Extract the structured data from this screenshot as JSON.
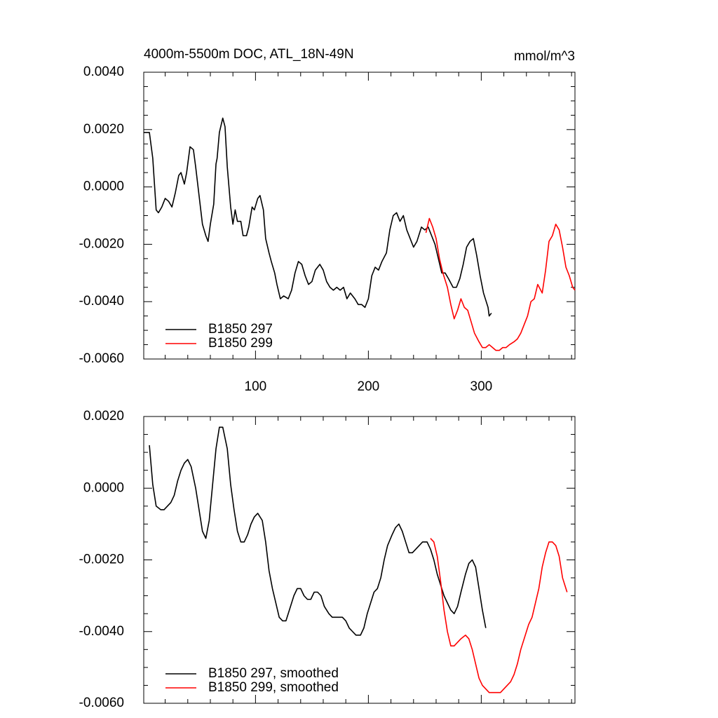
{
  "chart_data": [
    {
      "type": "line",
      "title": "4000m-5500m DOC, ATL_18N-49N",
      "units": "mmol/m^3",
      "xlim": [
        1,
        383
      ],
      "xticks": [
        100,
        200,
        300
      ],
      "show_xtick_labels": true,
      "minor_xticks": [
        20,
        40,
        60,
        80,
        120,
        140,
        160,
        180,
        220,
        240,
        260,
        280,
        320,
        340,
        360,
        380
      ],
      "ylim": [
        -0.006,
        0.004
      ],
      "yticks": [
        {
          "value": -0.006,
          "label": "-0.0060"
        },
        {
          "value": -0.004,
          "label": "-0.0040"
        },
        {
          "value": -0.002,
          "label": "-0.0020"
        },
        {
          "value": 0,
          "label": "0.0000"
        },
        {
          "value": 0.002,
          "label": "0.0020"
        },
        {
          "value": 0.004,
          "label": "0.0040"
        }
      ],
      "minor_yticks": [
        -0.0055,
        -0.005,
        -0.0045,
        -0.0035,
        -0.003,
        -0.0025,
        -0.0015,
        -0.001,
        -0.0005,
        0.0005,
        0.001,
        0.0015,
        0.0025,
        0.003,
        0.0035
      ],
      "legend": "lower left",
      "series": [
        {
          "name": "B1850 297",
          "color": "#000000",
          "x": [
            1,
            4,
            6,
            9,
            12,
            14,
            17,
            20,
            23,
            26,
            29,
            32,
            34,
            37,
            39,
            42,
            45,
            47,
            50,
            53,
            56,
            58,
            60,
            63,
            65,
            66,
            68,
            71,
            73,
            75,
            78,
            80,
            82,
            84,
            87,
            89,
            92,
            94,
            97,
            99,
            102,
            104,
            107,
            109,
            112,
            114,
            117,
            119,
            122,
            125,
            129,
            132,
            135,
            138,
            141,
            144,
            147,
            150,
            153,
            157,
            160,
            163,
            166,
            169,
            172,
            175,
            178,
            181,
            184,
            188,
            191,
            194,
            197,
            200,
            203,
            206,
            209,
            212,
            216,
            219,
            222,
            225,
            228,
            231,
            234,
            237,
            240,
            243,
            247,
            250,
            253,
            256,
            259,
            262,
            265,
            268,
            271,
            275,
            278,
            281,
            284,
            287,
            290,
            293,
            296,
            299,
            302,
            306,
            307,
            309
          ],
          "values": [
            0.0019,
            0.0019,
            0.0019,
            0.001,
            -0.0008,
            -0.0009,
            -0.0007,
            -0.0004,
            -0.0005,
            -0.0007,
            -0.0002,
            0.0004,
            0.0005,
            0.0001,
            0.0005,
            0.0014,
            0.0013,
            0.0007,
            -0.0003,
            -0.0013,
            -0.0017,
            -0.0019,
            -0.0013,
            -0.0006,
            0.0008,
            0.001,
            0.0019,
            0.0024,
            0.0021,
            0.0007,
            -0.0007,
            -0.0013,
            -0.0008,
            -0.0012,
            -0.0012,
            -0.0017,
            -0.0017,
            -0.0014,
            -0.0007,
            -0.0008,
            -0.0004,
            -0.0003,
            -0.0008,
            -0.0018,
            -0.0023,
            -0.0026,
            -0.003,
            -0.0034,
            -0.0039,
            -0.0038,
            -0.0039,
            -0.0036,
            -0.003,
            -0.0026,
            -0.0027,
            -0.0031,
            -0.0034,
            -0.0033,
            -0.0029,
            -0.0027,
            -0.0029,
            -0.0033,
            -0.0035,
            -0.0036,
            -0.0035,
            -0.0036,
            -0.0035,
            -0.0039,
            -0.0037,
            -0.0039,
            -0.0041,
            -0.0041,
            -0.0042,
            -0.0039,
            -0.0031,
            -0.0028,
            -0.0029,
            -0.0026,
            -0.0023,
            -0.0015,
            -0.001,
            -0.0009,
            -0.0012,
            -0.001,
            -0.0015,
            -0.0018,
            -0.0021,
            -0.0019,
            -0.0014,
            -0.0015,
            -0.0014,
            -0.0017,
            -0.002,
            -0.0025,
            -0.003,
            -0.003,
            -0.0032,
            -0.0035,
            -0.0035,
            -0.0032,
            -0.0027,
            -0.0021,
            -0.0019,
            -0.0018,
            -0.0024,
            -0.0031,
            -0.0037,
            -0.0042,
            -0.0045,
            -0.0044
          ]
        },
        {
          "name": "B1850 299",
          "color": "#ff0000",
          "x": [
            251,
            254,
            257,
            260,
            263,
            266,
            270,
            273,
            276,
            279,
            282,
            285,
            288,
            291,
            294,
            298,
            301,
            304,
            307,
            310,
            313,
            316,
            319,
            322,
            325,
            329,
            332,
            335,
            338,
            341,
            344,
            347,
            350,
            354,
            357,
            360,
            363,
            366,
            369,
            372,
            375,
            378,
            381,
            383
          ],
          "values": [
            -0.0016,
            -0.0011,
            -0.0014,
            -0.0018,
            -0.0025,
            -0.003,
            -0.0035,
            -0.0041,
            -0.0046,
            -0.0043,
            -0.0039,
            -0.0042,
            -0.0043,
            -0.0047,
            -0.0051,
            -0.0054,
            -0.0056,
            -0.0056,
            -0.0055,
            -0.0056,
            -0.0057,
            -0.0057,
            -0.0056,
            -0.0056,
            -0.0055,
            -0.0054,
            -0.0053,
            -0.0051,
            -0.0048,
            -0.0045,
            -0.004,
            -0.0039,
            -0.0034,
            -0.0037,
            -0.0029,
            -0.0019,
            -0.0017,
            -0.0013,
            -0.0015,
            -0.0021,
            -0.0028,
            -0.0031,
            -0.0035,
            -0.0036
          ]
        }
      ]
    },
    {
      "type": "line",
      "xlim": [
        1,
        383
      ],
      "xticks": [
        100,
        200,
        300
      ],
      "show_xtick_labels": false,
      "minor_xticks": [
        20,
        40,
        60,
        80,
        120,
        140,
        160,
        180,
        220,
        240,
        260,
        280,
        320,
        340,
        360,
        380
      ],
      "ylim": [
        -0.006,
        0.002
      ],
      "yticks": [
        {
          "value": -0.006,
          "label": "-0.0060"
        },
        {
          "value": -0.004,
          "label": "-0.0040"
        },
        {
          "value": -0.002,
          "label": "-0.0020"
        },
        {
          "value": 0,
          "label": "0.0000"
        },
        {
          "value": 0.002,
          "label": "0.0020"
        }
      ],
      "minor_yticks": [
        -0.0055,
        -0.005,
        -0.0045,
        -0.0035,
        -0.003,
        -0.0025,
        -0.0015,
        -0.001,
        -0.0005,
        0.0005,
        0.001,
        0.0015
      ],
      "legend": "lower left",
      "series": [
        {
          "name": "B1850 297, smoothed",
          "color": "#000000",
          "x": [
            6,
            9,
            12,
            16,
            19,
            22,
            25,
            28,
            31,
            34,
            37,
            40,
            43,
            47,
            50,
            53,
            56,
            59,
            62,
            65,
            68,
            71,
            75,
            78,
            81,
            84,
            87,
            90,
            93,
            96,
            99,
            102,
            106,
            109,
            112,
            115,
            118,
            121,
            124,
            127,
            130,
            134,
            137,
            140,
            143,
            146,
            149,
            152,
            155,
            158,
            161,
            165,
            168,
            171,
            174,
            177,
            180,
            183,
            186,
            189,
            193,
            196,
            199,
            202,
            205,
            208,
            211,
            214,
            217,
            221,
            224,
            227,
            230,
            233,
            236,
            239,
            242,
            245,
            248,
            252,
            255,
            258,
            261,
            264,
            267,
            270,
            273,
            276,
            279,
            282,
            286,
            289,
            292,
            295,
            298,
            301,
            304
          ],
          "values": [
            0.0012,
            0.0001,
            -0.0005,
            -0.0006,
            -0.0006,
            -0.0005,
            -0.0004,
            -0.0002,
            0.0002,
            0.0005,
            0.0007,
            0.0008,
            0.0006,
            0.0,
            -0.0006,
            -0.0012,
            -0.0014,
            -0.0009,
            0.0001,
            0.0011,
            0.0017,
            0.0017,
            0.0011,
            0.0001,
            -0.0006,
            -0.0012,
            -0.0015,
            -0.0015,
            -0.0013,
            -0.001,
            -0.0008,
            -0.0007,
            -0.0009,
            -0.0015,
            -0.0023,
            -0.0028,
            -0.0032,
            -0.0036,
            -0.0037,
            -0.0037,
            -0.0034,
            -0.003,
            -0.0028,
            -0.0028,
            -0.003,
            -0.0031,
            -0.0031,
            -0.0029,
            -0.0029,
            -0.003,
            -0.0033,
            -0.0035,
            -0.0036,
            -0.0036,
            -0.0036,
            -0.0036,
            -0.0037,
            -0.0039,
            -0.004,
            -0.0041,
            -0.0041,
            -0.0039,
            -0.0035,
            -0.0032,
            -0.0029,
            -0.0028,
            -0.0025,
            -0.002,
            -0.0016,
            -0.0013,
            -0.0011,
            -0.001,
            -0.0012,
            -0.0015,
            -0.0018,
            -0.0018,
            -0.0017,
            -0.0016,
            -0.0015,
            -0.0015,
            -0.0017,
            -0.002,
            -0.0024,
            -0.0027,
            -0.003,
            -0.0032,
            -0.0034,
            -0.0035,
            -0.0033,
            -0.0029,
            -0.0024,
            -0.0021,
            -0.002,
            -0.0022,
            -0.0028,
            -0.0034,
            -0.0039
          ]
        },
        {
          "name": "B1850 299, smoothed",
          "color": "#ff0000",
          "x": [
            255,
            258,
            261,
            264,
            267,
            270,
            273,
            276,
            279,
            282,
            286,
            289,
            292,
            295,
            298,
            301,
            304,
            307,
            311,
            314,
            317,
            320,
            323,
            326,
            329,
            332,
            335,
            339,
            342,
            345,
            348,
            351,
            354,
            357,
            360,
            363,
            366,
            369,
            372,
            376
          ],
          "values": [
            -0.0014,
            -0.0015,
            -0.0019,
            -0.0026,
            -0.0034,
            -0.004,
            -0.0044,
            -0.0044,
            -0.0043,
            -0.0042,
            -0.0041,
            -0.0042,
            -0.0045,
            -0.0049,
            -0.0053,
            -0.0055,
            -0.0056,
            -0.0057,
            -0.0057,
            -0.0057,
            -0.0057,
            -0.0056,
            -0.0055,
            -0.0054,
            -0.0052,
            -0.0049,
            -0.0045,
            -0.0041,
            -0.0038,
            -0.0036,
            -0.0032,
            -0.0028,
            -0.0022,
            -0.0018,
            -0.0015,
            -0.0015,
            -0.0016,
            -0.0019,
            -0.0025,
            -0.0029
          ]
        }
      ]
    }
  ]
}
